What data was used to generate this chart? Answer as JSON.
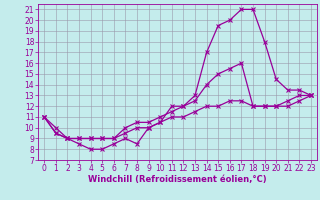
{
  "xlabel": "Windchill (Refroidissement éolien,°C)",
  "xlim": [
    -0.5,
    23.5
  ],
  "ylim": [
    7,
    21.5
  ],
  "xticks": [
    0,
    1,
    2,
    3,
    4,
    5,
    6,
    7,
    8,
    9,
    10,
    11,
    12,
    13,
    14,
    15,
    16,
    17,
    18,
    19,
    20,
    21,
    22,
    23
  ],
  "yticks": [
    7,
    8,
    9,
    10,
    11,
    12,
    13,
    14,
    15,
    16,
    17,
    18,
    19,
    20,
    21
  ],
  "background_color": "#c4ecec",
  "line_color": "#990099",
  "grid_color": "#9999aa",
  "line1_x": [
    0,
    1,
    2,
    3,
    4,
    5,
    6,
    7,
    8,
    9,
    10,
    11,
    12,
    13,
    14,
    15,
    16,
    17,
    18,
    19,
    20,
    21,
    22,
    23
  ],
  "line1_y": [
    11,
    10,
    9,
    8.5,
    8,
    8,
    8.5,
    9,
    8.5,
    10,
    10.5,
    12,
    12,
    13,
    17,
    19.5,
    20,
    21,
    21,
    18,
    14.5,
    13.5,
    13.5,
    13
  ],
  "line2_x": [
    0,
    1,
    2,
    3,
    4,
    5,
    6,
    7,
    8,
    9,
    10,
    11,
    12,
    13,
    14,
    15,
    16,
    17,
    18,
    19,
    20,
    21,
    22,
    23
  ],
  "line2_y": [
    11,
    9.5,
    9,
    9,
    9,
    9,
    9,
    10,
    10.5,
    10.5,
    11,
    11.5,
    12,
    12.5,
    14,
    15,
    15.5,
    16,
    12,
    12,
    12,
    12.5,
    13,
    13
  ],
  "line3_x": [
    0,
    1,
    2,
    3,
    4,
    5,
    6,
    7,
    8,
    9,
    10,
    11,
    12,
    13,
    14,
    15,
    16,
    17,
    18,
    19,
    20,
    21,
    22,
    23
  ],
  "line3_y": [
    11,
    9.5,
    9,
    9,
    9,
    9,
    9,
    9.5,
    10,
    10,
    10.5,
    11,
    11,
    11.5,
    12,
    12,
    12.5,
    12.5,
    12,
    12,
    12,
    12,
    12.5,
    13
  ],
  "tick_fontsize": 5.5,
  "xlabel_fontsize": 6.0,
  "marker_size": 2.5,
  "linewidth": 0.9
}
